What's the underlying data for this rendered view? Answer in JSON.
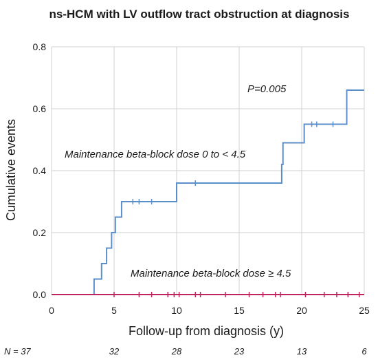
{
  "chart_data": {
    "type": "line",
    "title": "ns-HCM with LV outflow tract obstruction at diagnosis",
    "xlabel": "Follow-up from diagnosis (y)",
    "ylabel": "Cumulative events",
    "xlim": [
      0,
      25
    ],
    "ylim": [
      0,
      0.8
    ],
    "x_ticks": [
      "0",
      "5",
      "10",
      "15",
      "20",
      "25"
    ],
    "y_ticks": [
      "0.0",
      "0.2",
      "0.4",
      "0.6",
      "0.8"
    ],
    "grid": true,
    "series": [
      {
        "name": "Maintenance beta-block dose 0 to < 4.5",
        "color": "#5b8fcb",
        "step": [
          {
            "x": 0,
            "y": 0
          },
          {
            "x": 3.4,
            "y": 0.05
          },
          {
            "x": 4.0,
            "y": 0.1
          },
          {
            "x": 4.4,
            "y": 0.15
          },
          {
            "x": 4.8,
            "y": 0.2
          },
          {
            "x": 5.1,
            "y": 0.25
          },
          {
            "x": 5.6,
            "y": 0.3
          },
          {
            "x": 10.0,
            "y": 0.36
          },
          {
            "x": 18.4,
            "y": 0.42
          },
          {
            "x": 18.5,
            "y": 0.49
          },
          {
            "x": 20.2,
            "y": 0.55
          },
          {
            "x": 23.6,
            "y": 0.66
          },
          {
            "x": 25.0,
            "y": 0.66
          }
        ],
        "censored": [
          6.5,
          7.0,
          8.0,
          11.5,
          20.8,
          21.2,
          22.5
        ]
      },
      {
        "name": "Maintenance beta-block dose ≥ 4.5",
        "color": "#c0245c",
        "step": [
          {
            "x": 0,
            "y": 0
          },
          {
            "x": 25.0,
            "y": 0
          }
        ],
        "censored": [
          5.0,
          7.0,
          8.0,
          9.3,
          9.8,
          10.2,
          11.5,
          11.9,
          13.9,
          15.8,
          16.9,
          17.9,
          18.3,
          20.3,
          21.8,
          22.8,
          23.7,
          24.6
        ]
      }
    ],
    "annotations": {
      "p_value": "P=0.005",
      "upper_series_label": "Maintenance beta-block dose 0 to < 4.5",
      "lower_series_label": "Maintenance beta-block dose ≥ 4.5"
    },
    "at_risk": {
      "label": "N = 37",
      "values": [
        "32",
        "28",
        "23",
        "13",
        "6"
      ]
    }
  }
}
